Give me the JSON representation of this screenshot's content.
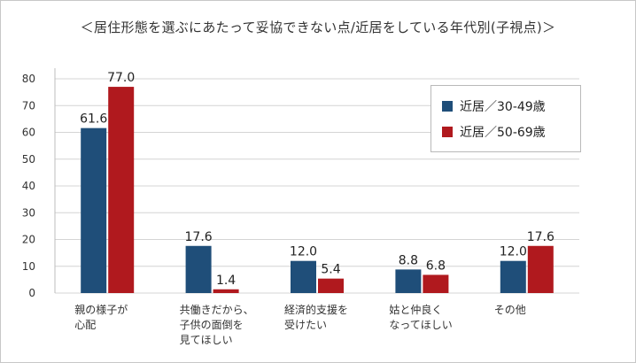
{
  "chart_data": {
    "type": "bar",
    "title": "＜居住形態を選ぶにあたって妥協できない点/近居をしている年代別(子視点)＞",
    "categories": [
      [
        "親の様子が",
        "心配"
      ],
      [
        "共働きだから、",
        "子供の面倒を",
        "見てほしい"
      ],
      [
        "経済的支援を",
        "受けたい"
      ],
      [
        "姑と仲良く",
        "なってほしい"
      ],
      [
        "その他"
      ]
    ],
    "series": [
      {
        "name": "近居／30-49歳",
        "color": "#1f4e79",
        "values": [
          61.6,
          17.6,
          12.0,
          8.8,
          12.0
        ],
        "labels": [
          "61.6",
          "17.6",
          "12.0",
          "8.8",
          "12.0"
        ]
      },
      {
        "name": "近居／50-69歳",
        "color": "#b0191e",
        "values": [
          77.0,
          1.4,
          5.4,
          6.8,
          17.6
        ],
        "labels": [
          "77.0",
          "1.4",
          "5.4",
          "6.8",
          "17.6"
        ]
      }
    ],
    "ylim": [
      0,
      80
    ],
    "yticks": [
      "0",
      "10",
      "20",
      "30",
      "40",
      "50",
      "60",
      "70",
      "80"
    ],
    "grid": true,
    "legend_position": "top-right"
  }
}
